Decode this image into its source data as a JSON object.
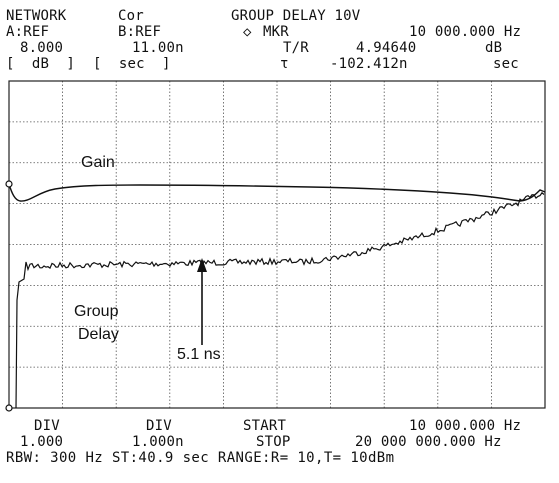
{
  "header": {
    "instrument": "NETWORK",
    "correction": "Cor",
    "mode_title": "GROUP DELAY 10V",
    "channel_a": "A:REF",
    "channel_b": "B:REF",
    "marker_symbol": "◇",
    "marker_label": "MKR",
    "marker_freq": "10 000.000 Hz",
    "a_scale": "8.000",
    "b_scale": "11.00n",
    "tr_label": "T/R",
    "tr_value": "4.94640",
    "tr_unit": "dB",
    "a_unit_bracket": "[  dB  ]",
    "b_unit_bracket": "[  sec  ]",
    "tau_symbol": "τ",
    "tau_value": "-102.412n",
    "tau_unit": "sec"
  },
  "annotations": {
    "gain": "Gain",
    "group_delay_line1": "Group",
    "group_delay_line2": "Delay",
    "delay_marker": "5.1 ns"
  },
  "footer": {
    "div_a_label": "DIV",
    "div_b_label": "DIV",
    "start_label": "START",
    "start_value": "10 000.000 Hz",
    "div_a_value": "1.000",
    "div_b_value": "1.000n",
    "stop_label": "STOP",
    "stop_value": "20 000 000.000 Hz",
    "status_line": "RBW: 300 Hz ST:40.9 sec RANGE:R= 10,T= 10dBm"
  },
  "colors": {
    "trace": "#111111",
    "grid": "#555555",
    "background": "#ffffff"
  }
}
